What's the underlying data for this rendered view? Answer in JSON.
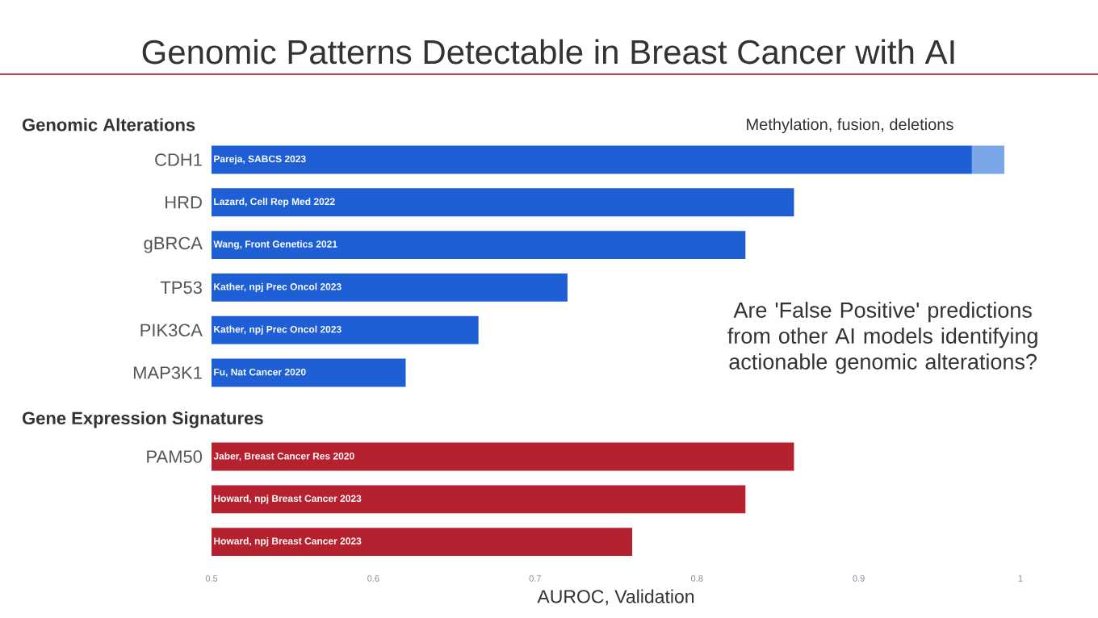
{
  "chart_data": [
    {
      "type": "bar",
      "orientation": "horizontal",
      "title": "Genomic Patterns Detectable in Breast Cancer with AI",
      "subtitle": "Genomic Alterations",
      "categories": [
        "CDH1",
        "HRD",
        "gBRCA",
        "TP53",
        "PIK3CA",
        "MAP3K1"
      ],
      "series": [
        {
          "color": "#1f5fd6",
          "values": [
            0.97,
            0.86,
            0.83,
            0.72,
            0.665,
            0.62
          ],
          "value_labels": [
            "Pareja, SABCS 2023",
            "Lazard, Cell Rep Med 2022",
            "Wang, Front Genetics 2021",
            "Kather, npj Prec Oncol 2023",
            "Kather, npj Prec Oncol 2023",
            "Fu, Nat Cancer 2020"
          ]
        },
        {
          "color": "#7aa6e8",
          "values": [
            0.02,
            null,
            null,
            null,
            null,
            null
          ],
          "base": [
            0.97,
            null,
            null,
            null,
            null,
            null
          ]
        }
      ],
      "xlim": [
        0.5,
        1
      ],
      "xticks": [
        0.5,
        0.6,
        0.7,
        0.8,
        0.9,
        1
      ],
      "tick_labels": "y",
      "annotations": [
        "Methylation, fusion, deletions",
        "Are 'False Positive' predictions from other AI models identifying actionable genomic alterations?"
      ]
    },
    {
      "type": "bar",
      "orientation": "horizontal",
      "title": "Gene Expression Signatures",
      "xlabel": "AUROC, Validation",
      "categories": [
        "PAM50",
        null,
        null
      ],
      "series": [
        {
          "color": "#b5212e",
          "values": [
            0.86,
            0.83,
            0.76
          ],
          "value_labels": [
            "Jaber, Breast Cancer Res 2020",
            "Howard, npj Breast Cancer 2023",
            "Howard, npj Breast Cancer 2023"
          ]
        }
      ],
      "xlim": [
        0.5,
        1
      ],
      "xticks": [
        0.5,
        0.6,
        0.7,
        0.8,
        0.9,
        1
      ]
    }
  ]
}
